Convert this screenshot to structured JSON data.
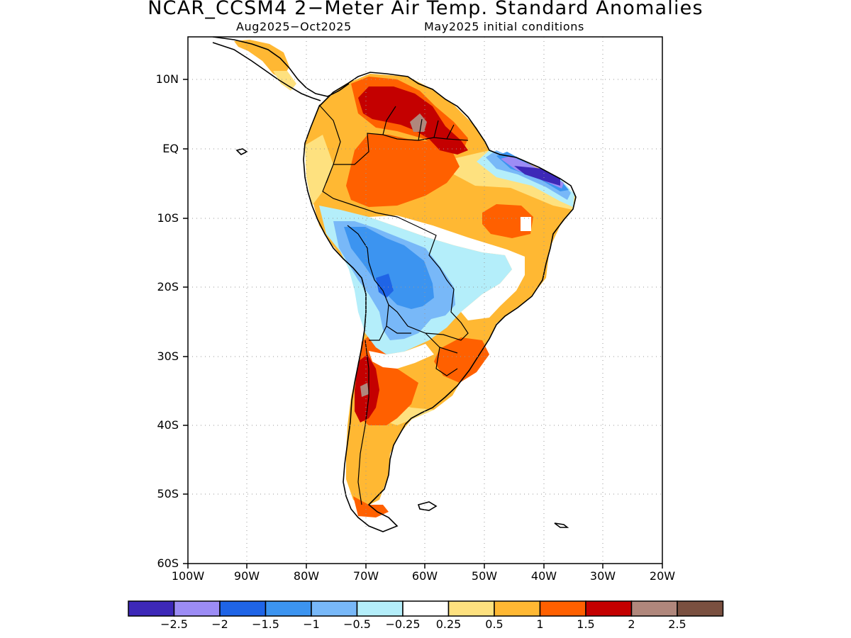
{
  "title": "NCAR_CCSM4 2−Meter Air Temp. Standard Anomalies",
  "subtitle_left": "Aug2025−Oct2025",
  "subtitle_right": "May2025 initial conditions",
  "axes": {
    "lat_labels": [
      "10N",
      "EQ",
      "10S",
      "20S",
      "30S",
      "40S",
      "50S",
      "60S"
    ],
    "lon_labels": [
      "100W",
      "90W",
      "80W",
      "70W",
      "60W",
      "50W",
      "40W",
      "30W",
      "20W"
    ],
    "lat_range": [
      -60,
      15
    ],
    "lon_range": [
      -100,
      -20
    ],
    "grid": "dotted"
  },
  "colorbar": {
    "colors": [
      "#3d28b8",
      "#9c8cf5",
      "#1f64e6",
      "#3c94f0",
      "#78b8f8",
      "#b4eefa",
      "#ffffff",
      "#fee17f",
      "#ffb833",
      "#ff6000",
      "#c40000",
      "#b0877c",
      "#7a5040"
    ],
    "labels": [
      "−2.5",
      "−2",
      "−1.5",
      "−1",
      "−0.5",
      "−0.25",
      "0.25",
      "0.5",
      "1",
      "1.5",
      "2",
      "2.5"
    ]
  },
  "colors": {
    "very_warm": "#c40000",
    "warm_strong": "#ff6000",
    "warm": "#ffb833",
    "warm_weak": "#fee17f",
    "cool_weak": "#b4eefa",
    "cool": "#78b8f8",
    "cool_mid": "#3c94f0",
    "cool_strong": "#1f64e6",
    "cold": "#9c8cf5",
    "coldest": "#3d28b8",
    "extreme_warm": "#b0877c"
  }
}
